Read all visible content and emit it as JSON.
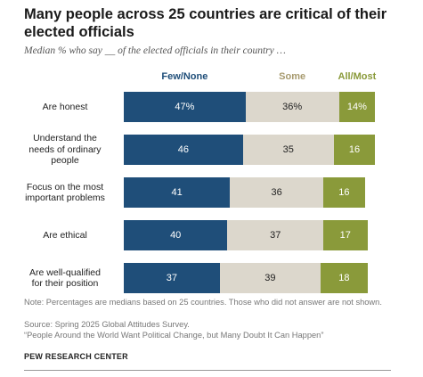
{
  "title": "Many people across 25 countries are critical of their elected officials",
  "subtitle": "Median % who say __ of the elected officials in their country …",
  "colors": {
    "few": "#1f4e79",
    "some": "#dcd7cc",
    "most": "#8a9a3a",
    "few_label": "#1f4e79",
    "some_label": "#a79a6e",
    "most_label": "#8a9a3a"
  },
  "chart_data": {
    "type": "bar",
    "orientation": "horizontal",
    "stacked": true,
    "categories": [
      "Are honest",
      "Understand the needs of ordinary people",
      "Focus on the most important problems",
      "Are ethical",
      "Are well-qualified for their position"
    ],
    "category_lines": [
      [
        "Are honest"
      ],
      [
        "Understand the",
        "needs of ordinary",
        "people"
      ],
      [
        "Focus on the most",
        "important problems"
      ],
      [
        "Are ethical"
      ],
      [
        "Are well-qualified",
        "for their position"
      ]
    ],
    "series": [
      {
        "name": "Few/None",
        "values": [
          47,
          46,
          41,
          40,
          37
        ],
        "labels": [
          "47%",
          "46",
          "41",
          "40",
          "37"
        ]
      },
      {
        "name": "Some",
        "values": [
          36,
          35,
          36,
          37,
          39
        ],
        "labels": [
          "36%",
          "35",
          "36",
          "37",
          "39"
        ]
      },
      {
        "name": "All/Most",
        "values": [
          14,
          16,
          16,
          17,
          18
        ],
        "labels": [
          "14%",
          "16",
          "16",
          "17",
          "18"
        ]
      }
    ],
    "xlim": [
      0,
      100
    ],
    "grid": false,
    "legend": "top"
  },
  "footer": {
    "note": "Note: Percentages are medians based on 25 countries. Those who did not answer are not shown.",
    "source": "Source: Spring 2025 Global Attitudes Survey.",
    "report": "“People Around the World Want Political Change, but Many Doubt It Can Happen”",
    "org": "PEW RESEARCH CENTER"
  }
}
